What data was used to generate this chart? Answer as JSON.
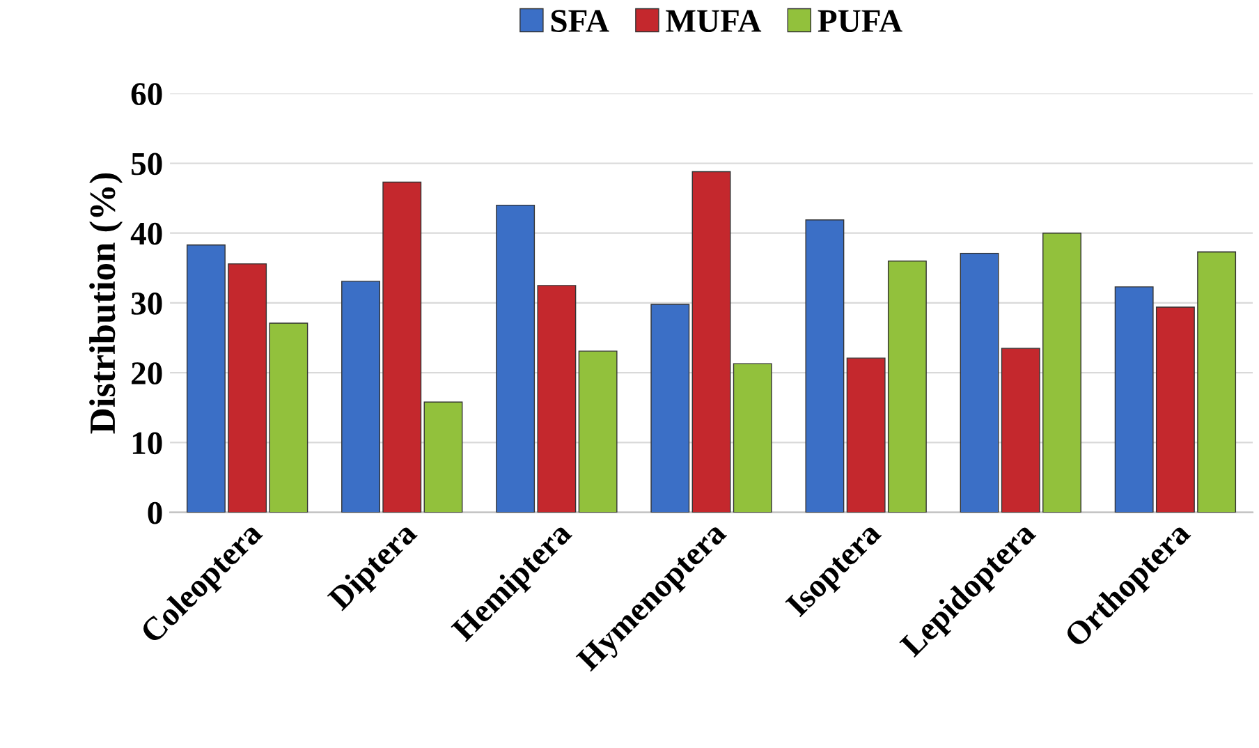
{
  "chart_data": {
    "type": "bar",
    "ylabel": "Distribution (%)",
    "categories": [
      "Coleoptera",
      "Diptera",
      "Hemiptera",
      "Hymenoptera",
      "Isoptera",
      "Lepidoptera",
      "Orthoptera"
    ],
    "series": [
      {
        "name": "SFA",
        "color": "#3b6fc6",
        "values": [
          38.3,
          33.1,
          44.0,
          29.8,
          41.9,
          37.1,
          32.3
        ]
      },
      {
        "name": "MUFA",
        "color": "#c4282d",
        "values": [
          35.6,
          47.3,
          32.5,
          48.8,
          22.1,
          23.5,
          29.4
        ]
      },
      {
        "name": "PUFA",
        "color": "#92c13c",
        "values": [
          27.1,
          15.8,
          23.1,
          21.3,
          36.0,
          40.0,
          37.3
        ]
      }
    ],
    "ylim": [
      0,
      60
    ],
    "yticks": [
      0,
      10,
      20,
      30,
      40,
      50,
      60
    ],
    "grid": "y",
    "legend": "top"
  }
}
